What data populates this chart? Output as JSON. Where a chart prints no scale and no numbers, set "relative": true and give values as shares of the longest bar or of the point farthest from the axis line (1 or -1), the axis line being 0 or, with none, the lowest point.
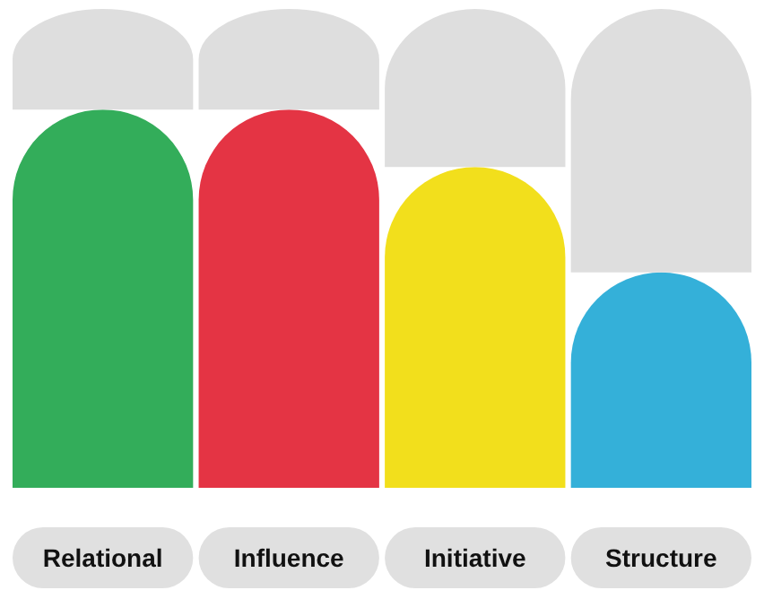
{
  "chart_data": {
    "type": "bar",
    "relative": true,
    "stacked": true,
    "categories": [
      "Relational",
      "Influence",
      "Initiative",
      "Structure"
    ],
    "series": [
      {
        "colors": [
          "#33ad5a",
          "#e43444",
          "#f2df1c",
          "#34b0d9"
        ],
        "values": [
          0.79,
          0.79,
          0.67,
          0.45
        ]
      },
      {
        "color": "#dedede",
        "values": [
          0.21,
          0.21,
          0.33,
          0.55
        ]
      }
    ]
  }
}
